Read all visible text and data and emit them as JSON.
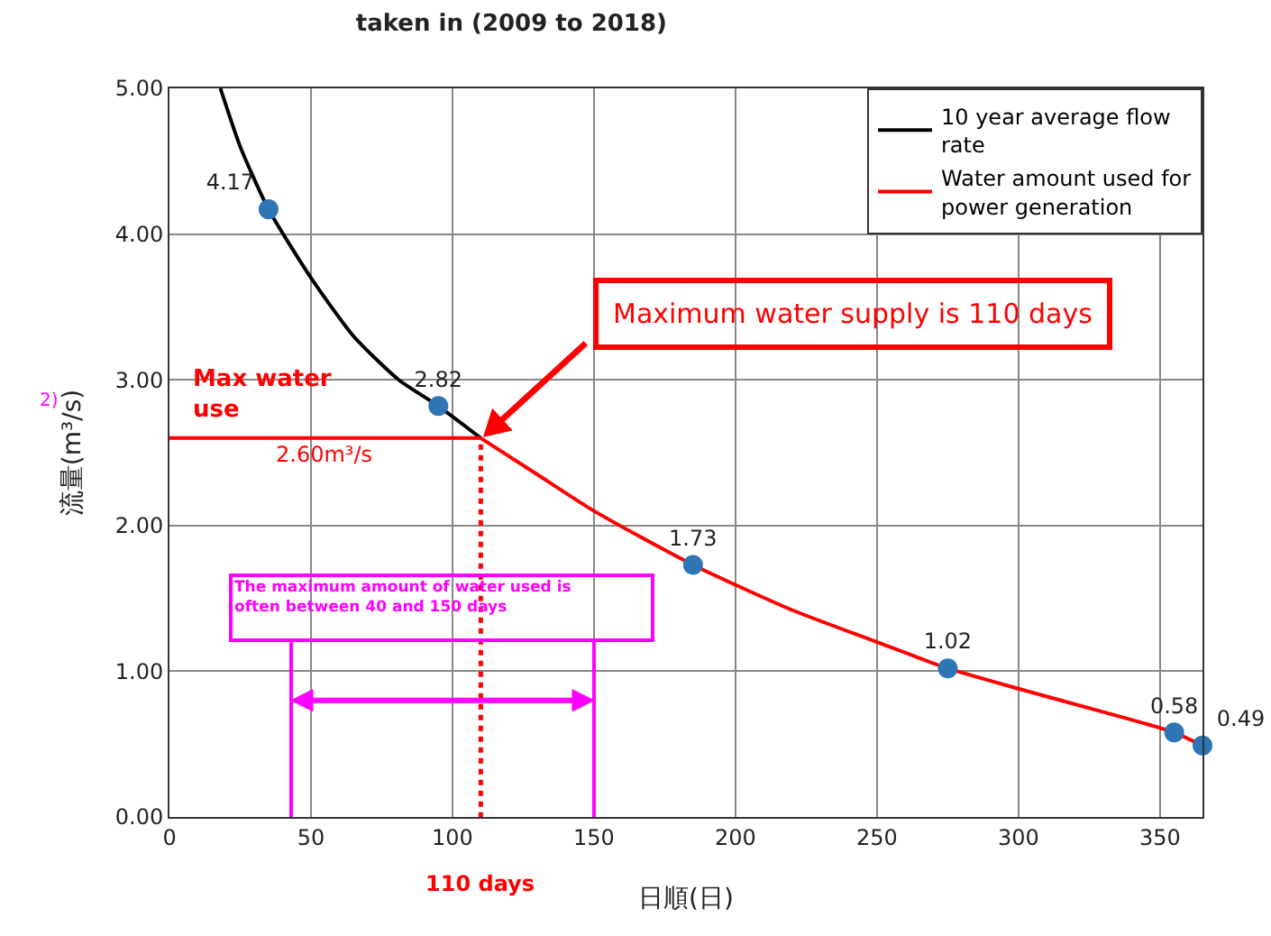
{
  "chart_data": {
    "type": "line",
    "title": "taken in (2009 to 2018)",
    "xlabel": "日順(日)",
    "ylabel": "流量(m³/s)",
    "xlim": [
      0,
      365
    ],
    "xticks": [
      0,
      50,
      100,
      150,
      200,
      250,
      300,
      350
    ],
    "ylim": [
      0,
      5
    ],
    "yticks": [
      {
        "value": 0,
        "label": "0.00"
      },
      {
        "value": 1,
        "label": "1.00"
      },
      {
        "value": 2,
        "label": "2.00"
      },
      {
        "value": 3,
        "label": "3.00"
      },
      {
        "value": 4,
        "label": "4.00"
      },
      {
        "value": 5,
        "label": "5.00"
      }
    ],
    "grid": true,
    "legend": "top right",
    "series": [
      {
        "name": "10 year average flow rate",
        "color": "#000000",
        "marker": "none",
        "x": [
          18,
          25,
          35,
          50,
          65,
          81,
          95,
          110
        ],
        "values": [
          5.0,
          4.6,
          4.17,
          3.7,
          3.3,
          3.0,
          2.82,
          2.6
        ]
      },
      {
        "name": "Water amount used for power generation",
        "color": "#ff0000",
        "marker": "none",
        "x": [
          110,
          130,
          150,
          185,
          220,
          250,
          275,
          300,
          330,
          355,
          365
        ],
        "values": [
          2.6,
          2.35,
          2.1,
          1.73,
          1.42,
          1.2,
          1.02,
          0.88,
          0.72,
          0.58,
          0.49
        ]
      },
      {
        "color": "#ff0000",
        "marker": "none",
        "x": [
          0,
          110
        ],
        "values": [
          2.6,
          2.6
        ]
      },
      {
        "color": "#2e75b6",
        "type": "scatter",
        "marker": "circle",
        "x": [
          35,
          95,
          185,
          275,
          355,
          365
        ],
        "values": [
          4.17,
          2.82,
          1.73,
          1.02,
          0.58,
          0.49
        ],
        "value_labels": [
          "4.17",
          "2.82",
          "1.73",
          "1.02",
          "0.58",
          "0.49"
        ]
      }
    ],
    "ref_lines": [
      {
        "axis": "x",
        "value": 110,
        "label": "110 days",
        "color": "#ff0000",
        "line_style": "dotted"
      },
      {
        "axis": "x",
        "value": 43,
        "color": "#ff00ff"
      },
      {
        "axis": "x",
        "value": 150,
        "color": "#ff00ff"
      }
    ],
    "annotations": [
      "Max water use",
      {
        "text": "2.60m³/s",
        "x": 55,
        "y": 2.6
      },
      "Maximum water supply is 110 days",
      "2)",
      "The maximum amount of water used is often between 40 and 150 days"
    ]
  }
}
